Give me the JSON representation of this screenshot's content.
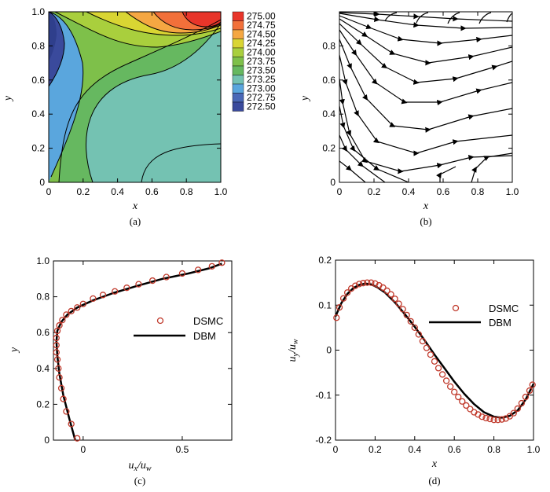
{
  "chart_data": [
    {
      "type": "contour",
      "caption": "(a)",
      "xlabel": "x",
      "ylabel": "y",
      "xlim": [
        0,
        1.0
      ],
      "ylim": [
        0,
        1.0
      ],
      "xticks": [
        "0",
        "0.2",
        "0.4",
        "0.6",
        "0.8",
        "1.0"
      ],
      "yticks": [
        "0",
        "0.2",
        "0.4",
        "0.6",
        "0.8",
        "1.0"
      ],
      "colorbar": {
        "levels": [
          "275.00",
          "274.75",
          "274.50",
          "274.25",
          "274.00",
          "273.75",
          "273.50",
          "273.25",
          "273.00",
          "272.75",
          "272.50"
        ],
        "colors": [
          "#e8352a",
          "#f2703a",
          "#f5a742",
          "#d9d533",
          "#a9cf3d",
          "#7ec04a",
          "#66b860",
          "#74c2b2",
          "#5aa6dd",
          "#4a68b7",
          "#3a4a9c"
        ]
      }
    },
    {
      "type": "streamlines",
      "caption": "(b)",
      "xlabel": "x",
      "ylabel": "y",
      "xlim": [
        0,
        1.0
      ],
      "ylim": [
        0,
        1.0
      ],
      "xticks": [
        "0",
        "0.2",
        "0.4",
        "0.6",
        "0.8",
        "1.0"
      ],
      "yticks": [
        "0",
        "0.2",
        "0.4",
        "0.6",
        "0.8"
      ]
    },
    {
      "type": "line",
      "caption": "(c)",
      "xlabel": "u",
      "xlabel_sub1": "x",
      "xlabel_mid": "/u",
      "xlabel_sub2": "w",
      "ylabel": "y",
      "xlim": [
        -0.15,
        0.75
      ],
      "ylim": [
        0,
        1.0
      ],
      "xticks": [
        "0",
        "0.5"
      ],
      "yticks": [
        "0",
        "0.2",
        "0.4",
        "0.6",
        "0.8",
        "1.0"
      ],
      "legend": [
        "DSMC",
        "DBM"
      ],
      "series": [
        {
          "name": "DSMC",
          "x": [
            -0.03,
            -0.06,
            -0.085,
            -0.1,
            -0.11,
            -0.12,
            -0.125,
            -0.13,
            -0.135,
            -0.135,
            -0.135,
            -0.13,
            -0.12,
            -0.105,
            -0.085,
            -0.06,
            -0.03,
            0.0,
            0.05,
            0.1,
            0.16,
            0.22,
            0.28,
            0.35,
            0.42,
            0.5,
            0.58,
            0.65,
            0.7
          ],
          "y": [
            0.01,
            0.09,
            0.16,
            0.23,
            0.29,
            0.35,
            0.4,
            0.45,
            0.49,
            0.53,
            0.57,
            0.61,
            0.64,
            0.67,
            0.7,
            0.72,
            0.74,
            0.76,
            0.79,
            0.81,
            0.83,
            0.85,
            0.87,
            0.89,
            0.91,
            0.93,
            0.95,
            0.97,
            0.99
          ]
        },
        {
          "name": "DBM",
          "x": [
            -0.04,
            -0.07,
            -0.1,
            -0.12,
            -0.13,
            -0.135,
            -0.13,
            -0.11,
            -0.08,
            -0.03,
            0.05,
            0.15,
            0.27,
            0.4,
            0.53,
            0.64,
            0.7
          ],
          "y": [
            0.0,
            0.12,
            0.25,
            0.37,
            0.47,
            0.55,
            0.61,
            0.66,
            0.7,
            0.74,
            0.78,
            0.82,
            0.86,
            0.9,
            0.93,
            0.96,
            0.985
          ]
        }
      ]
    },
    {
      "type": "line",
      "caption": "(d)",
      "xlabel": "x",
      "ylabel": "u",
      "ylabel_sub1": "y",
      "ylabel_mid": "/u",
      "ylabel_sub2": "w",
      "xlim": [
        0,
        1.0
      ],
      "ylim": [
        -0.2,
        0.2
      ],
      "xticks": [
        "0",
        "0.2",
        "0.4",
        "0.6",
        "0.8",
        "1.0"
      ],
      "yticks": [
        "-0.2",
        "-0.1",
        "0",
        "0.1",
        "0.2"
      ],
      "legend": [
        "DSMC",
        "DBM"
      ],
      "series": [
        {
          "name": "DSMC",
          "x": [
            0.005,
            0.02,
            0.04,
            0.06,
            0.08,
            0.1,
            0.12,
            0.14,
            0.16,
            0.18,
            0.2,
            0.22,
            0.24,
            0.26,
            0.28,
            0.3,
            0.32,
            0.34,
            0.36,
            0.38,
            0.4,
            0.42,
            0.44,
            0.46,
            0.48,
            0.5,
            0.52,
            0.54,
            0.56,
            0.58,
            0.6,
            0.62,
            0.64,
            0.66,
            0.68,
            0.7,
            0.72,
            0.74,
            0.76,
            0.78,
            0.8,
            0.82,
            0.84,
            0.86,
            0.88,
            0.9,
            0.92,
            0.94,
            0.96,
            0.98,
            0.995
          ],
          "y": [
            0.072,
            0.095,
            0.115,
            0.128,
            0.137,
            0.143,
            0.147,
            0.149,
            0.15,
            0.15,
            0.148,
            0.144,
            0.139,
            0.132,
            0.124,
            0.114,
            0.103,
            0.091,
            0.078,
            0.064,
            0.05,
            0.035,
            0.02,
            0.005,
            -0.01,
            -0.025,
            -0.04,
            -0.054,
            -0.068,
            -0.081,
            -0.093,
            -0.104,
            -0.114,
            -0.123,
            -0.131,
            -0.138,
            -0.143,
            -0.148,
            -0.151,
            -0.153,
            -0.155,
            -0.155,
            -0.154,
            -0.152,
            -0.147,
            -0.14,
            -0.13,
            -0.118,
            -0.104,
            -0.09,
            -0.077
          ]
        },
        {
          "name": "DBM",
          "x": [
            0.0,
            0.03,
            0.06,
            0.09,
            0.12,
            0.15,
            0.18,
            0.21,
            0.25,
            0.3,
            0.35,
            0.4,
            0.45,
            0.5,
            0.55,
            0.6,
            0.65,
            0.7,
            0.75,
            0.8,
            0.84,
            0.88,
            0.92,
            0.96,
            1.0
          ],
          "y": [
            0.075,
            0.105,
            0.125,
            0.138,
            0.145,
            0.148,
            0.146,
            0.14,
            0.128,
            0.106,
            0.08,
            0.052,
            0.022,
            -0.01,
            -0.04,
            -0.07,
            -0.097,
            -0.12,
            -0.138,
            -0.148,
            -0.15,
            -0.146,
            -0.134,
            -0.11,
            -0.075
          ]
        }
      ]
    }
  ]
}
